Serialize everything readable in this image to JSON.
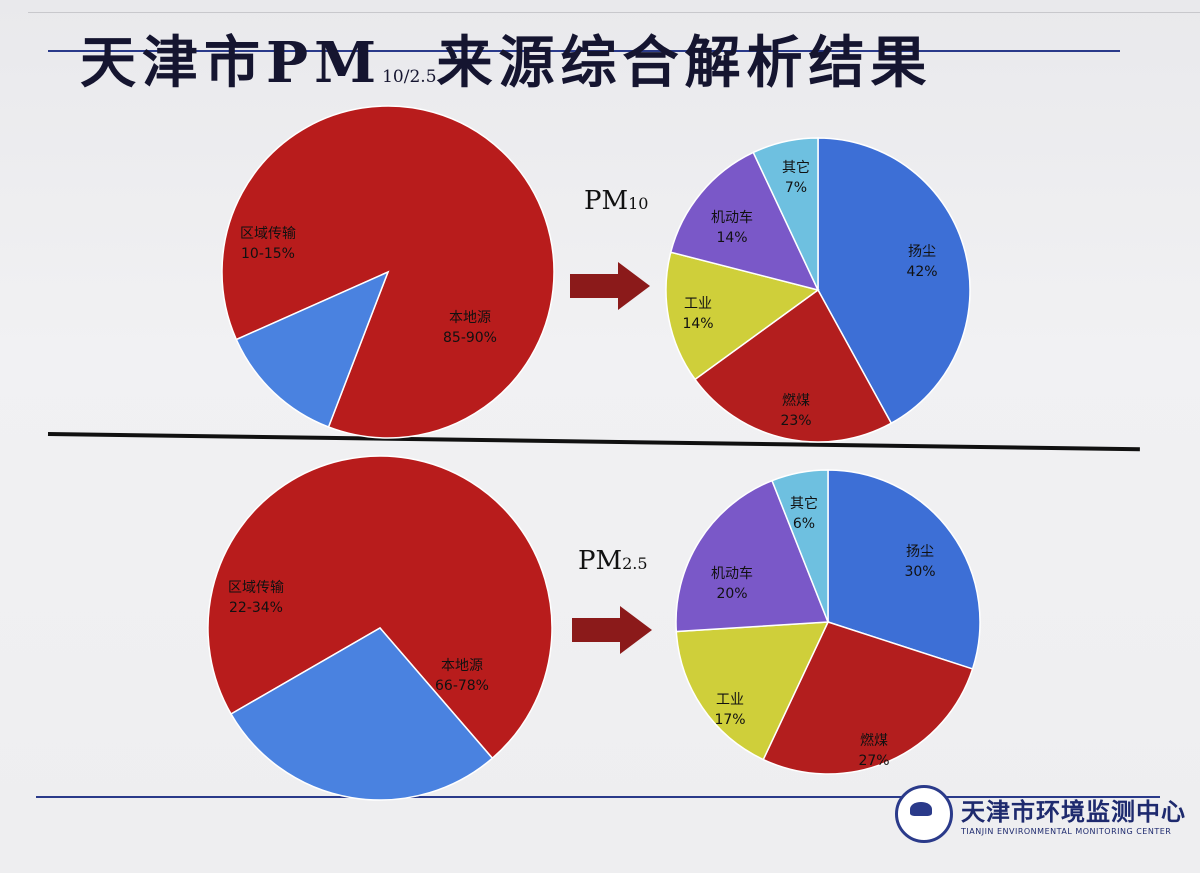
{
  "title": {
    "main": "天津市PM",
    "subscript": "10/2.5",
    "rest": "来源综合解析结果"
  },
  "org": {
    "name": "天津市环境监测中心",
    "name_en": "TIANJIN ENVIRONMENTAL MONITORING CENTER"
  },
  "labels": {
    "pm10_prefix": "PM",
    "pm10_sub": "10",
    "pm25_prefix": "PM",
    "pm25_sub": "2.5"
  },
  "colors": {
    "red": "#b81c1c",
    "blue": "#3d6fd6",
    "yellow": "#cfcf3a",
    "purple": "#7a58c8",
    "cyan": "#6ec0e0",
    "arrow": "#8b1a1a"
  },
  "chart_data": [
    {
      "type": "pie",
      "title": "",
      "slices": [
        {
          "name": "本地源",
          "value": 87.5,
          "label": "85-90%",
          "color": "#b81c1c"
        },
        {
          "name": "区域传输",
          "value": 12.5,
          "label": "10-15%",
          "color": "#4a82e0"
        }
      ]
    },
    {
      "type": "pie",
      "title": "PM10",
      "slices": [
        {
          "name": "扬尘",
          "value": 42,
          "label": "42%",
          "color": "#3d6fd6"
        },
        {
          "name": "燃煤",
          "value": 23,
          "label": "23%",
          "color": "#b31e1e"
        },
        {
          "name": "工业",
          "value": 14,
          "label": "14%",
          "color": "#cfcf3a"
        },
        {
          "name": "机动车",
          "value": 14,
          "label": "14%",
          "color": "#7a58c8"
        },
        {
          "name": "其它",
          "value": 7,
          "label": "7%",
          "color": "#6ec0e0"
        }
      ]
    },
    {
      "type": "pie",
      "title": "",
      "slices": [
        {
          "name": "本地源",
          "value": 72,
          "label": "66-78%",
          "color": "#b81c1c"
        },
        {
          "name": "区域传输",
          "value": 28,
          "label": "22-34%",
          "color": "#4a82e0"
        }
      ]
    },
    {
      "type": "pie",
      "title": "PM2.5",
      "slices": [
        {
          "name": "扬尘",
          "value": 30,
          "label": "30%",
          "color": "#3d6fd6"
        },
        {
          "name": "燃煤",
          "value": 27,
          "label": "27%",
          "color": "#b31e1e"
        },
        {
          "name": "工业",
          "value": 17,
          "label": "17%",
          "color": "#cfcf3a"
        },
        {
          "name": "机动车",
          "value": 20,
          "label": "20%",
          "color": "#7a58c8"
        },
        {
          "name": "其它",
          "value": 6,
          "label": "6%",
          "color": "#6ec0e0"
        }
      ]
    }
  ]
}
